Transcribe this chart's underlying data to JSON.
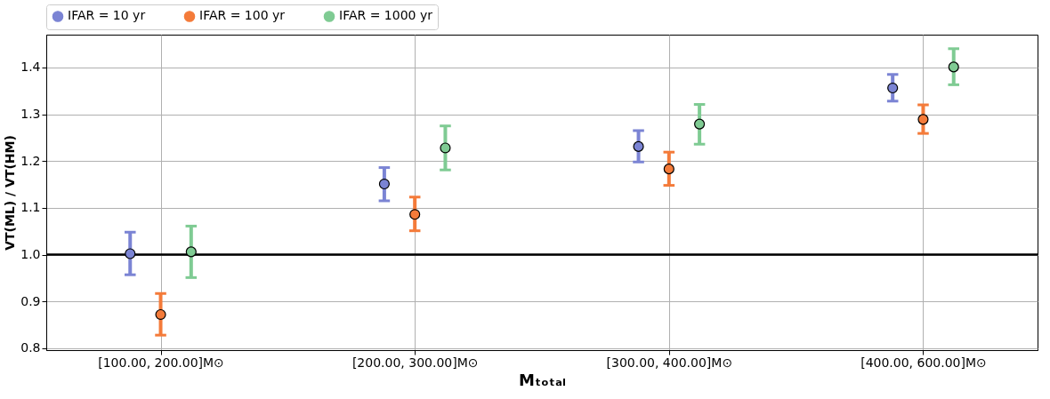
{
  "chart_data": {
    "type": "scatter",
    "xlabel": "Mₜₒₜₐₗ",
    "ylabel": "VT(ML) / VT(HM)",
    "categories": [
      "[100.00, 200.00]M⊙",
      "[200.00, 300.00]M⊙",
      "[300.00, 400.00]M⊙",
      "[400.00, 600.00]M⊙"
    ],
    "series": [
      {
        "name": "IFAR = 10 yr",
        "color": "#7b84d4",
        "values": [
          1.002,
          1.151,
          1.231,
          1.356
        ],
        "errors": [
          [
            0.957,
            1.048
          ],
          [
            1.115,
            1.186
          ],
          [
            1.198,
            1.265
          ],
          [
            1.328,
            1.385
          ]
        ]
      },
      {
        "name": "IFAR = 100 yr",
        "color": "#f47b3a",
        "values": [
          0.872,
          1.086,
          1.183,
          1.289
        ],
        "errors": [
          [
            0.828,
            0.917
          ],
          [
            1.051,
            1.123
          ],
          [
            1.148,
            1.219
          ],
          [
            1.259,
            1.32
          ]
        ]
      },
      {
        "name": "IFAR = 1000 yr",
        "color": "#7fcb93",
        "values": [
          1.006,
          1.228,
          1.279,
          1.401
        ],
        "errors": [
          [
            0.951,
            1.061
          ],
          [
            1.181,
            1.275
          ],
          [
            1.236,
            1.321
          ],
          [
            1.363,
            1.44
          ]
        ]
      }
    ],
    "ylim": [
      0.796,
      1.47
    ],
    "yticks": [
      0.8,
      0.9,
      {
        "value": 1,
        "label": "1.0"
      },
      1.1,
      1.2,
      1.3,
      1.4
    ],
    "ref_lines": [
      {
        "axis": "y",
        "value": 1.0,
        "color": "#000000"
      }
    ],
    "grid": true,
    "legend": "top",
    "marker": "circle"
  }
}
